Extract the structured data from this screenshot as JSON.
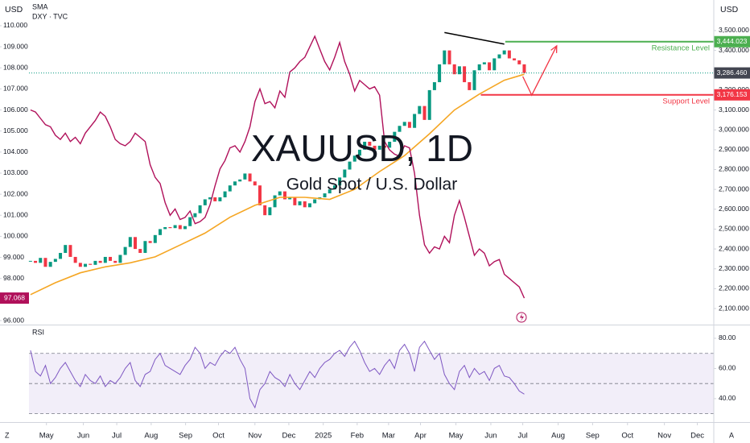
{
  "chart_data": [
    {
      "type": "candlestick",
      "title": "XAUUSD, 1D",
      "subtitle": "Gold Spot / U.S. Dollar",
      "y_unit": "USD",
      "y2_unit": "USD",
      "xlim": [
        -0.3,
        137.0
      ],
      "xticks": [
        {
          "value": 3.2,
          "label": "May"
        },
        {
          "value": 10.6,
          "label": "Jun"
        },
        {
          "value": 17.3,
          "label": "Jul"
        },
        {
          "value": 24.2,
          "label": "Aug"
        },
        {
          "value": 31.1,
          "label": "Sep"
        },
        {
          "value": 37.7,
          "label": "Oct"
        },
        {
          "value": 45.0,
          "label": "Nov"
        },
        {
          "value": 51.8,
          "label": "Dec"
        },
        {
          "value": 58.7,
          "label": "2025"
        },
        {
          "value": 65.5,
          "label": "Feb"
        },
        {
          "value": 71.8,
          "label": "Mar"
        },
        {
          "value": 78.2,
          "label": "Apr"
        },
        {
          "value": 85.3,
          "label": "May"
        },
        {
          "value": 92.3,
          "label": "Jun"
        },
        {
          "value": 98.7,
          "label": "Jul"
        },
        {
          "value": 105.8,
          "label": "Aug"
        },
        {
          "value": 112.7,
          "label": "Sep"
        },
        {
          "value": 119.7,
          "label": "Oct"
        },
        {
          "value": 127.1,
          "label": "Nov"
        },
        {
          "value": 133.7,
          "label": "Dec"
        }
      ],
      "ylim": [
        95.81,
        111.22
      ],
      "yticks": [
        {
          "value": 110,
          "label": "110.000"
        },
        {
          "value": 109,
          "label": "109.000"
        },
        {
          "value": 108,
          "label": "108.000"
        },
        {
          "value": 107,
          "label": "107.000"
        },
        {
          "value": 106,
          "label": "106.000"
        },
        {
          "value": 105,
          "label": "105.000"
        },
        {
          "value": 104,
          "label": "104.000"
        },
        {
          "value": 103,
          "label": "103.000"
        },
        {
          "value": 102,
          "label": "102.000"
        },
        {
          "value": 101,
          "label": "101.000"
        },
        {
          "value": 100,
          "label": "100.000"
        },
        {
          "value": 99,
          "label": "99.000"
        },
        {
          "value": 98,
          "label": "98.000"
        },
        {
          "value": 96,
          "label": "96.000"
        }
      ],
      "y2lim": [
        2019,
        3654
      ],
      "y2ticks": [
        {
          "value": 3500,
          "label": "3,500.000"
        },
        {
          "value": 3400,
          "label": "3,400.000"
        },
        {
          "value": 3200,
          "label": "3,200.000"
        },
        {
          "value": 3100,
          "label": "3,100.000"
        },
        {
          "value": 3000,
          "label": "3,000.000"
        },
        {
          "value": 2900,
          "label": "2,900.000"
        },
        {
          "value": 2800,
          "label": "2,800.000"
        },
        {
          "value": 2700,
          "label": "2,700.000"
        },
        {
          "value": 2600,
          "label": "2,600.000"
        },
        {
          "value": 2500,
          "label": "2,500.000"
        },
        {
          "value": 2400,
          "label": "2,400.000"
        },
        {
          "value": 2300,
          "label": "2,300.000"
        },
        {
          "value": 2200,
          "label": "2,200.000"
        },
        {
          "value": 2100,
          "label": "2,100.000"
        }
      ],
      "series": [
        {
          "type": "candlestick",
          "axis": "y2",
          "up_color": "#089981",
          "down_color": "#f23645",
          "last_value_label": "3,286.460",
          "last_color": "#434651",
          "values": [
            2340,
            2330,
            2355,
            2310,
            2335,
            2350,
            2380,
            2420,
            2360,
            2330,
            2310,
            2325,
            2320,
            2340,
            2330,
            2360,
            2340,
            2330,
            2370,
            2410,
            2460,
            2400,
            2380,
            2440,
            2430,
            2470,
            2500,
            2510,
            2505,
            2520,
            2500,
            2515,
            2560,
            2580,
            2620,
            2650,
            2660,
            2640,
            2660,
            2690,
            2720,
            2740,
            2750,
            2780,
            2740,
            2720,
            2620,
            2570,
            2610,
            2670,
            2690,
            2650,
            2660,
            2620,
            2640,
            2610,
            2630,
            2650,
            2660,
            2680,
            2700,
            2720,
            2760,
            2800,
            2840,
            2870,
            2900,
            2940,
            2920,
            2900,
            2920,
            2910,
            2940,
            2990,
            3020,
            3040,
            3010,
            3080,
            3120,
            3050,
            3200,
            3240,
            3330,
            3400,
            3330,
            3280,
            3320,
            3240,
            3200,
            3300,
            3330,
            3340,
            3300,
            3360,
            3380,
            3400,
            3360,
            3350,
            3330,
            3286.46
          ]
        },
        {
          "name": "SMA",
          "type": "line",
          "axis": "y2",
          "color": "#f5a623",
          "x": [
            0,
            5,
            10,
            15,
            20,
            25,
            30,
            35,
            40,
            45,
            50,
            55,
            60,
            65,
            70,
            75,
            80,
            85,
            90,
            95,
            99
          ],
          "values": [
            2170,
            2230,
            2280,
            2310,
            2330,
            2360,
            2420,
            2480,
            2560,
            2620,
            2660,
            2660,
            2650,
            2700,
            2790,
            2870,
            2980,
            3100,
            3180,
            3250,
            3280
          ]
        },
        {
          "name": "DXY · TVC",
          "type": "line",
          "axis": "y",
          "color": "#b0105a",
          "values": [
            106.0,
            105.9,
            105.6,
            105.3,
            105.2,
            104.8,
            104.6,
            104.9,
            104.5,
            104.7,
            104.4,
            104.9,
            105.2,
            105.5,
            105.9,
            105.7,
            105.2,
            104.6,
            104.4,
            104.3,
            104.5,
            104.9,
            104.7,
            104.5,
            103.4,
            102.8,
            102.5,
            101.6,
            101.0,
            101.3,
            100.8,
            100.9,
            101.2,
            100.6,
            100.7,
            100.9,
            101.5,
            102.4,
            103.2,
            103.6,
            104.2,
            104.3,
            104.0,
            104.5,
            105.2,
            106.4,
            107.0,
            106.3,
            106.4,
            106.1,
            106.9,
            106.6,
            107.8,
            108.0,
            108.3,
            108.5,
            109.0,
            109.5,
            108.9,
            108.3,
            107.9,
            108.5,
            109.2,
            108.3,
            107.7,
            106.9,
            107.4,
            107.2,
            107.0,
            107.1,
            106.7,
            104.5,
            104.1,
            103.9,
            103.8,
            104.3,
            104.2,
            103.0,
            101.0,
            99.6,
            99.2,
            99.5,
            99.4,
            100.0,
            99.7,
            101.0,
            101.7,
            100.9,
            100.0,
            99.1,
            99.4,
            99.2,
            98.6,
            98.8,
            98.9,
            98.2,
            98.0,
            97.8,
            97.6,
            97.068
          ]
        }
      ],
      "trendline": {
        "color": "#000000",
        "x": [
          83,
          95
        ],
        "values": [
          3490,
          3432
        ]
      },
      "annotations": [
        {
          "text": "Resistance Level",
          "value": 3444.023,
          "label": "3,444.023",
          "start_x": 95.2,
          "color": "#4caf50"
        },
        {
          "text": "Support Level",
          "value": 3176.153,
          "label": "3,176.153",
          "start_x": 90.3,
          "color": "#f23645"
        }
      ],
      "projection": {
        "color": "#f23645",
        "x": [
          98.7,
          100.5,
          105.5
        ],
        "values": [
          3269,
          3175,
          3423
        ]
      }
    },
    {
      "type": "line",
      "title": "RSI",
      "color": "#7e57c2",
      "ylim": [
        25,
        88
      ],
      "yticks": [
        {
          "value": 80,
          "label": "80.00"
        },
        {
          "value": 60,
          "label": "60.00"
        },
        {
          "value": 40,
          "label": "40.00"
        }
      ],
      "levels": [
        70,
        50,
        30
      ],
      "band": [
        30,
        70
      ],
      "values": [
        72,
        58,
        55,
        62,
        50,
        54,
        60,
        64,
        58,
        52,
        48,
        56,
        52,
        50,
        55,
        48,
        52,
        50,
        54,
        60,
        64,
        52,
        48,
        56,
        58,
        66,
        70,
        62,
        60,
        58,
        56,
        62,
        66,
        74,
        70,
        60,
        64,
        62,
        68,
        72,
        70,
        74,
        66,
        60,
        40,
        34,
        46,
        50,
        58,
        54,
        52,
        48,
        56,
        50,
        46,
        52,
        58,
        54,
        60,
        64,
        66,
        70,
        72,
        68,
        74,
        78,
        72,
        64,
        58,
        60,
        56,
        62,
        66,
        60,
        72,
        76,
        70,
        58,
        74,
        78,
        72,
        66,
        70,
        56,
        50,
        46,
        58,
        62,
        54,
        60,
        56,
        58,
        52,
        60,
        62,
        55,
        54,
        50,
        45,
        43
      ]
    }
  ],
  "ui": {
    "left_corner": "Z",
    "right_corner": "A"
  }
}
